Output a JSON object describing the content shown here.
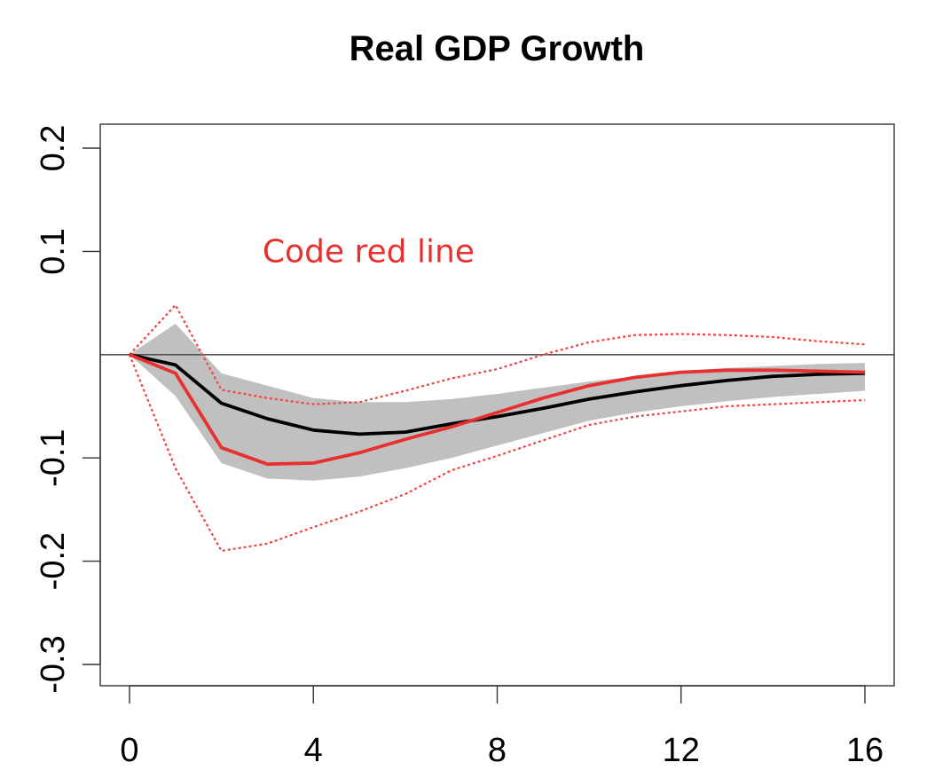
{
  "chart_data": {
    "type": "line",
    "title": "Real GDP Growth",
    "xlabel": "",
    "ylabel": "",
    "xlim": [
      0,
      16
    ],
    "ylim": [
      -0.3,
      0.2
    ],
    "x_ticks": [
      0,
      4,
      8,
      12,
      16
    ],
    "x_tick_labels": [
      "0",
      "4",
      "8",
      "12",
      "16"
    ],
    "y_ticks": [
      -0.3,
      -0.2,
      -0.1,
      0.1,
      0.2
    ],
    "y_tick_labels": [
      "-0.3",
      "-0.2",
      "-0.1",
      "0.1",
      "0.2"
    ],
    "reference_line": {
      "y": 0
    },
    "annotations": [
      {
        "text": "Code red line",
        "x": 5.2,
        "y": 0.1,
        "color": "#e8312f"
      }
    ],
    "x": [
      0,
      1,
      2,
      3,
      4,
      5,
      6,
      7,
      8,
      9,
      10,
      11,
      12,
      13,
      14,
      15,
      16
    ],
    "band": {
      "color": "#c0c0c0",
      "upper": [
        0.0,
        0.03,
        -0.018,
        -0.03,
        -0.042,
        -0.046,
        -0.046,
        -0.043,
        -0.038,
        -0.032,
        -0.026,
        -0.021,
        -0.016,
        -0.013,
        -0.011,
        -0.009,
        -0.008
      ],
      "lower": [
        0.0,
        -0.04,
        -0.105,
        -0.12,
        -0.122,
        -0.118,
        -0.11,
        -0.1,
        -0.088,
        -0.076,
        -0.064,
        -0.056,
        -0.05,
        -0.045,
        -0.041,
        -0.038,
        -0.035
      ]
    },
    "series": [
      {
        "color": "#000000",
        "style": "solid",
        "values": [
          0.0,
          -0.01,
          -0.047,
          -0.062,
          -0.073,
          -0.077,
          -0.075,
          -0.067,
          -0.06,
          -0.052,
          -0.043,
          -0.036,
          -0.03,
          -0.025,
          -0.021,
          -0.019,
          -0.018
        ]
      },
      {
        "color": "#e8312f",
        "style": "solid",
        "values": [
          0.0,
          -0.018,
          -0.09,
          -0.106,
          -0.105,
          -0.095,
          -0.082,
          -0.07,
          -0.056,
          -0.042,
          -0.03,
          -0.022,
          -0.017,
          -0.015,
          -0.015,
          -0.016,
          -0.017
        ]
      },
      {
        "color": "#ee4444",
        "style": "dotted",
        "values": [
          0.0,
          0.048,
          -0.034,
          -0.042,
          -0.048,
          -0.046,
          -0.035,
          -0.023,
          -0.014,
          0.0,
          0.012,
          0.019,
          0.02,
          0.019,
          0.017,
          0.013,
          0.01
        ]
      },
      {
        "color": "#ee4444",
        "style": "dotted",
        "values": [
          0.0,
          -0.11,
          -0.19,
          -0.183,
          -0.167,
          -0.152,
          -0.135,
          -0.112,
          -0.098,
          -0.083,
          -0.068,
          -0.06,
          -0.055,
          -0.05,
          -0.048,
          -0.046,
          -0.044
        ]
      }
    ]
  }
}
